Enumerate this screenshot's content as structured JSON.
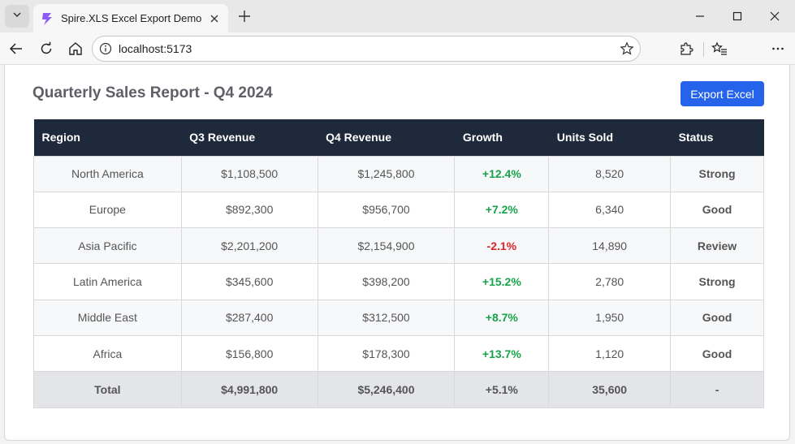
{
  "browser": {
    "tab_title": "Spire.XLS Excel Export Demo",
    "url": "localhost:5173"
  },
  "page": {
    "title": "Quarterly Sales Report - Q4 2024",
    "export_label": "Export Excel"
  },
  "table": {
    "headers": [
      "Region",
      "Q3 Revenue",
      "Q4 Revenue",
      "Growth",
      "Units Sold",
      "Status"
    ],
    "rows": [
      {
        "region": "North America",
        "q3": "$1,108,500",
        "q4": "$1,245,800",
        "growth": "+12.4%",
        "units": "8,520",
        "status": "Strong",
        "trend": "pos"
      },
      {
        "region": "Europe",
        "q3": "$892,300",
        "q4": "$956,700",
        "growth": "+7.2%",
        "units": "6,340",
        "status": "Good",
        "trend": "pos"
      },
      {
        "region": "Asia Pacific",
        "q3": "$2,201,200",
        "q4": "$2,154,900",
        "growth": "-2.1%",
        "units": "14,890",
        "status": "Review",
        "trend": "neg"
      },
      {
        "region": "Latin America",
        "q3": "$345,600",
        "q4": "$398,200",
        "growth": "+15.2%",
        "units": "2,780",
        "status": "Strong",
        "trend": "pos"
      },
      {
        "region": "Middle East",
        "q3": "$287,400",
        "q4": "$312,500",
        "growth": "+8.7%",
        "units": "1,950",
        "status": "Good",
        "trend": "pos"
      },
      {
        "region": "Africa",
        "q3": "$156,800",
        "q4": "$178,300",
        "growth": "+13.7%",
        "units": "1,120",
        "status": "Good",
        "trend": "pos"
      }
    ],
    "total": {
      "region": "Total",
      "q3": "$4,991,800",
      "q4": "$5,246,400",
      "growth": "+5.1%",
      "units": "35,600",
      "status": "-"
    }
  },
  "colors": {
    "header_bg": "#1e293b",
    "accent": "#2563eb",
    "positive": "#16a34a",
    "negative": "#dc2626"
  },
  "icons": [
    "tab-menu-icon",
    "lightning-favicon-icon",
    "close-icon",
    "plus-icon",
    "minimize-icon",
    "maximize-icon",
    "window-close-icon",
    "back-icon",
    "refresh-icon",
    "home-icon",
    "info-icon",
    "star-icon",
    "extensions-icon",
    "favorites-icon",
    "more-icon"
  ]
}
